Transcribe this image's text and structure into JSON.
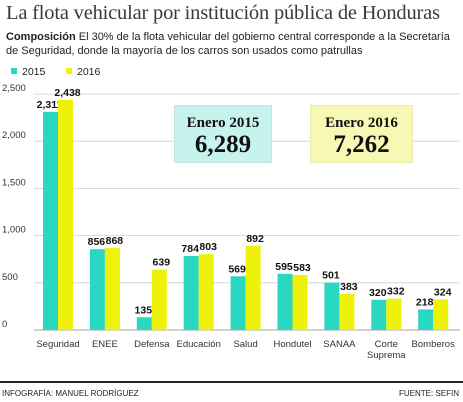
{
  "header": {
    "title": "La flota vehicular por institución pública de Honduras",
    "subtitle_lead": "Composición",
    "subtitle_text": "El 30% de la flota vehicular del gobierno central corresponde a la Secretaría de Seguridad, donde la mayoría de los carros son usados como patrullas"
  },
  "colors": {
    "s2015": "#2ad7c1",
    "s2016": "#eef20a",
    "box2015": "#c6f3ee",
    "box2016": "#f6f8b4"
  },
  "highlights": [
    {
      "label": "Enero 2015",
      "value": "6,289"
    },
    {
      "label": "Enero 2016",
      "value": "7,262"
    }
  ],
  "chart_data": {
    "type": "bar",
    "categories": [
      "Seguridad",
      "ENEE",
      "Defensa",
      "Educación",
      "Salud",
      "Hondutel",
      "SANAA",
      "Corte Suprema",
      "Bomberos"
    ],
    "series": [
      {
        "name": "2015",
        "values": [
          2311,
          856,
          135,
          784,
          569,
          595,
          501,
          320,
          218
        ]
      },
      {
        "name": "2016",
        "values": [
          2438,
          868,
          639,
          803,
          892,
          583,
          383,
          332,
          324
        ]
      }
    ],
    "data_labels": [
      [
        "2,311",
        "856",
        "135",
        "784",
        "569",
        "595",
        "501",
        "320",
        "218"
      ],
      [
        "2,438",
        "868",
        "639",
        "803",
        "892",
        "583",
        "383",
        "332",
        "324"
      ]
    ],
    "yticks": [
      0,
      500,
      1000,
      1500,
      2000,
      2500
    ],
    "ytick_labels": [
      "0",
      "500",
      "1,000",
      "1,500",
      "2,000",
      "2,500"
    ],
    "ylim": [
      0,
      2500
    ],
    "grid": true,
    "legend": "top-left"
  },
  "footer": {
    "credit": "INFOGRAFÍA: MANUEL RODRÍGUEZ",
    "source": "FUENTE: SEFIN"
  }
}
